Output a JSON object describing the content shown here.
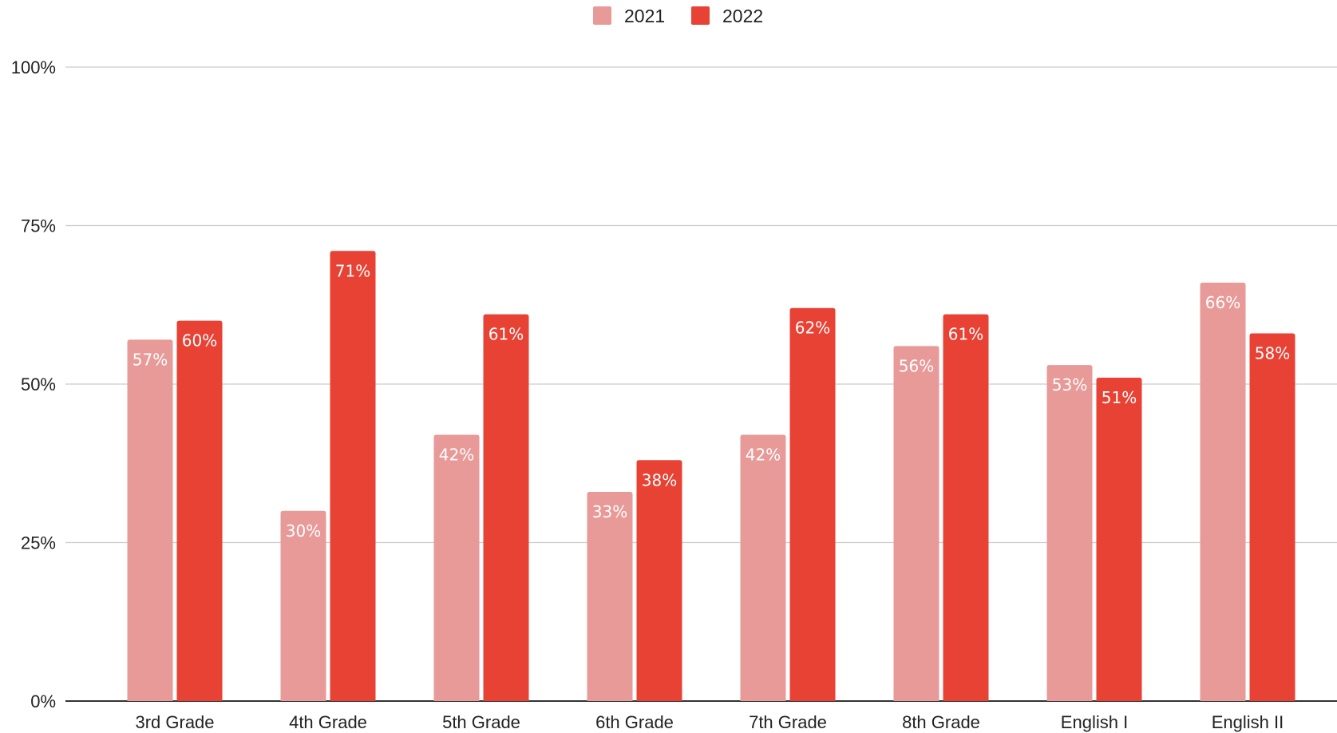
{
  "chart_data": {
    "type": "bar",
    "categories": [
      "3rd Grade",
      "4th Grade",
      "5th Grade",
      "6th Grade",
      "7th Grade",
      "8th Grade",
      "English I",
      "English II"
    ],
    "series": [
      {
        "name": "2021",
        "values": [
          57,
          30,
          42,
          33,
          42,
          56,
          53,
          66
        ],
        "labels": [
          "57%",
          "30%",
          "42%",
          "33%",
          "42%",
          "56%",
          "53%",
          "66%"
        ],
        "color": "#e89a98"
      },
      {
        "name": "2022",
        "values": [
          60,
          71,
          61,
          38,
          62,
          61,
          51,
          58
        ],
        "labels": [
          "60%",
          "71%",
          "61%",
          "38%",
          "62%",
          "61%",
          "51%",
          "58%"
        ],
        "color": "#e84235"
      }
    ],
    "y_ticks": [
      0,
      25,
      50,
      75,
      100
    ],
    "y_tick_labels": [
      "0%",
      "25%",
      "50%",
      "75%",
      "100%"
    ],
    "ylim": [
      0,
      100
    ],
    "grid": true,
    "legend_position": "top-center"
  }
}
